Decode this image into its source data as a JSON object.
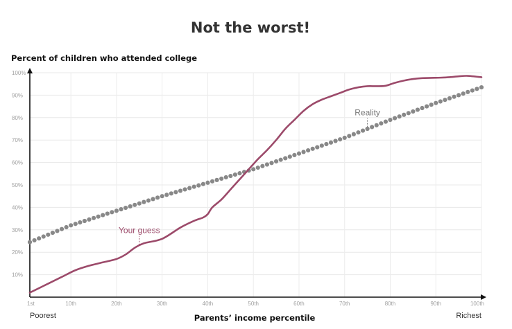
{
  "chart_data": {
    "type": "line",
    "title": "Not the worst!",
    "ylabel": "Percent of children who attended college",
    "xlabel": "Parents’ income percentile",
    "x_range": [
      1,
      100
    ],
    "ylim": [
      0,
      100
    ],
    "grid": true,
    "y_ticks": [
      "10%",
      "20%",
      "30%",
      "40%",
      "50%",
      "60%",
      "70%",
      "80%",
      "90%",
      "100%"
    ],
    "x_ticks": [
      {
        "x": 1,
        "label": "1st"
      },
      {
        "x": 10,
        "label": "10th"
      },
      {
        "x": 20,
        "label": "20th"
      },
      {
        "x": 30,
        "label": "30th"
      },
      {
        "x": 40,
        "label": "40th"
      },
      {
        "x": 50,
        "label": "50th"
      },
      {
        "x": 60,
        "label": "60th"
      },
      {
        "x": 70,
        "label": "70th"
      },
      {
        "x": 80,
        "label": "80th"
      },
      {
        "x": 90,
        "label": "90th"
      },
      {
        "x": 100,
        "label": "100th"
      }
    ],
    "x_end_labels": {
      "left": "Poorest",
      "right": "Richest"
    },
    "colors": {
      "guess": "#9c4a6a",
      "reality": "#888888"
    },
    "series": [
      {
        "name": "Your guess",
        "style": "line",
        "x": [
          1,
          3,
          5,
          8,
          11,
          14,
          17,
          20,
          22,
          24,
          26,
          30,
          34,
          37,
          39,
          40,
          41,
          43,
          45,
          47,
          49,
          51,
          53,
          55,
          57,
          59,
          61,
          63,
          65,
          67,
          69,
          71,
          73,
          75,
          77,
          79,
          81,
          83,
          85,
          87,
          89,
          91,
          93,
          95,
          97,
          100
        ],
        "y": [
          2,
          4,
          6,
          9,
          12,
          14,
          15.5,
          17,
          19,
          22,
          24,
          26,
          31,
          34,
          35.5,
          37,
          40,
          43.5,
          48,
          52.5,
          57,
          61.5,
          65.5,
          70,
          75,
          79,
          83,
          86,
          88,
          89.5,
          91,
          92.5,
          93.5,
          94,
          94,
          94.2,
          95.5,
          96.5,
          97.2,
          97.6,
          97.7,
          97.8,
          98,
          98.4,
          98.6,
          98
        ]
      },
      {
        "name": "Reality",
        "style": "dotted",
        "x": [
          1,
          10,
          20,
          30,
          40,
          50,
          60,
          70,
          80,
          90,
          100
        ],
        "y": [
          24.5,
          32,
          38.5,
          45,
          51,
          57,
          64,
          71,
          79,
          86.5,
          93.5
        ]
      }
    ],
    "annotations": [
      {
        "text": "Your guess",
        "series": "Your guess",
        "x": 25,
        "y": 22
      },
      {
        "text": "Reality",
        "series": "Reality",
        "x": 75,
        "y": 74.5
      }
    ]
  }
}
